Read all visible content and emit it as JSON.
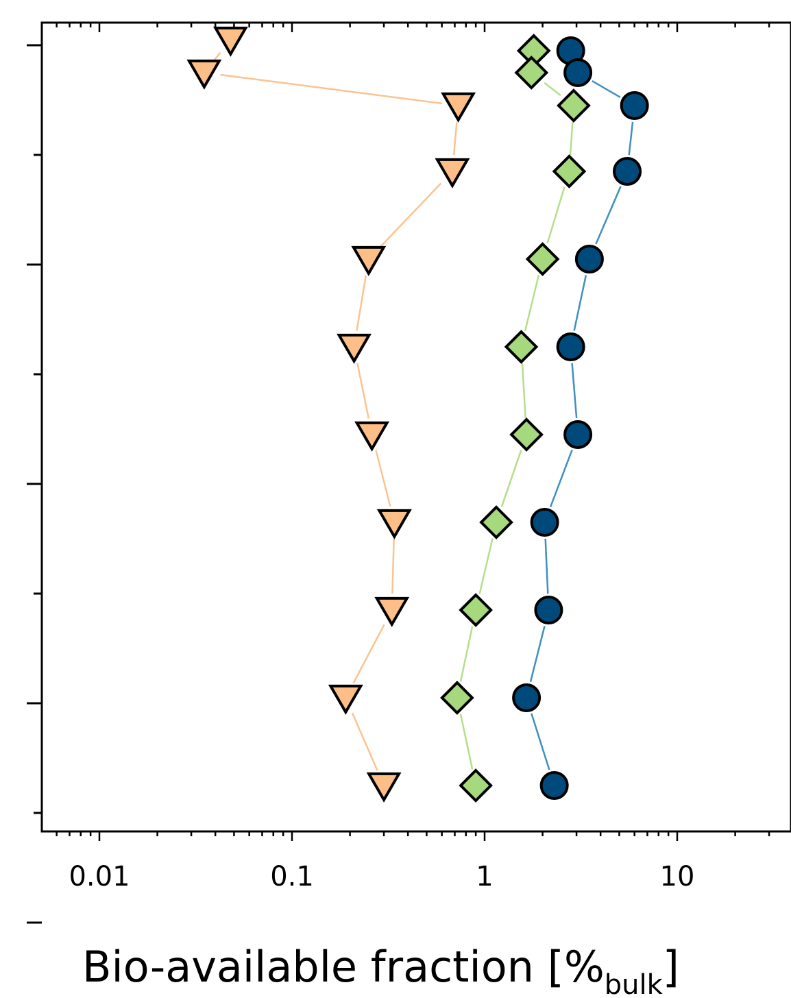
{
  "chart_data": {
    "type": "scatter",
    "title": "",
    "xlabel": "Bio-available fraction [%",
    "xlabel_sub": "bulk",
    "xlabel_close": "]",
    "ylabel": "",
    "xscale": "log",
    "xlim": [
      0.005,
      40
    ],
    "ylim": [
      0.5,
      11
    ],
    "x_tick_labels": [
      "0.01",
      "0.1",
      "1",
      "10"
    ],
    "x_tick_values": [
      0.01,
      0.1,
      1,
      10
    ],
    "y_major_ticks": [
      1,
      3,
      5,
      7,
      9
    ],
    "y_minor_ticks": [
      2,
      4,
      6,
      8,
      10
    ],
    "grid": false,
    "series": [
      {
        "marker": "triangle-down",
        "color": "#FDBF87",
        "line_color": "#FBC38F",
        "points": [
          {
            "y": 0.95,
            "x": 0.048
          },
          {
            "y": 1.25,
            "x": 0.035
          },
          {
            "y": 1.55,
            "x": 0.73
          },
          {
            "y": 2.15,
            "x": 0.68
          },
          {
            "y": 2.95,
            "x": 0.25
          },
          {
            "y": 3.75,
            "x": 0.21
          },
          {
            "y": 4.55,
            "x": 0.26
          },
          {
            "y": 5.35,
            "x": 0.34
          },
          {
            "y": 6.15,
            "x": 0.33
          },
          {
            "y": 6.95,
            "x": 0.19
          },
          {
            "y": 7.75,
            "x": 0.3
          }
        ]
      },
      {
        "marker": "diamond",
        "color": "#A6D97E",
        "line_color": "#B3DF8A",
        "points": [
          {
            "y": 1.05,
            "x": 1.8
          },
          {
            "y": 1.25,
            "x": 1.75
          },
          {
            "y": 1.55,
            "x": 2.9
          },
          {
            "y": 2.15,
            "x": 2.75
          },
          {
            "y": 2.95,
            "x": 2.0
          },
          {
            "y": 3.75,
            "x": 1.55
          },
          {
            "y": 4.55,
            "x": 1.65
          },
          {
            "y": 5.35,
            "x": 1.15
          },
          {
            "y": 6.15,
            "x": 0.9
          },
          {
            "y": 6.95,
            "x": 0.72
          },
          {
            "y": 7.75,
            "x": 0.9
          }
        ]
      },
      {
        "marker": "circle",
        "color": "#004A7B",
        "line_color": "#3F8FC0",
        "points": [
          {
            "y": 1.05,
            "x": 2.8
          },
          {
            "y": 1.25,
            "x": 3.05
          },
          {
            "y": 1.55,
            "x": 6.0
          },
          {
            "y": 2.15,
            "x": 5.5
          },
          {
            "y": 2.95,
            "x": 3.5
          },
          {
            "y": 3.75,
            "x": 2.8
          },
          {
            "y": 4.55,
            "x": 3.05
          },
          {
            "y": 5.35,
            "x": 2.05
          },
          {
            "y": 6.15,
            "x": 2.15
          },
          {
            "y": 6.95,
            "x": 1.65
          },
          {
            "y": 7.75,
            "x": 2.3
          }
        ]
      }
    ]
  }
}
